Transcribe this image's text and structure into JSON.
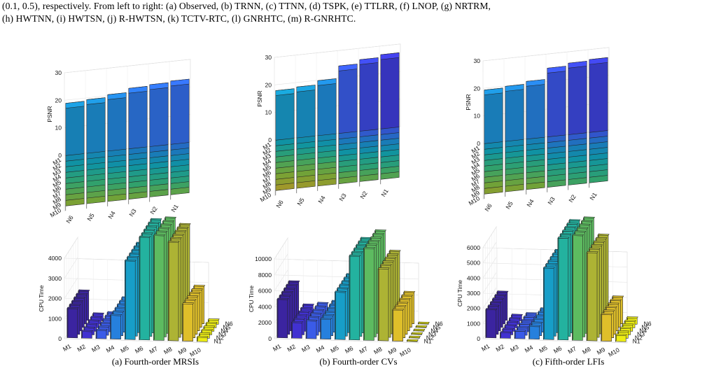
{
  "caption": {
    "line1": "(0.1, 0.5), respectively. From left to right: (a) Observed, (b) TRNN, (c) TTNN, (d) TSPK, (e) TTLRR, (f) LNOP, (g) NRTRM,",
    "line2": "(h) HWTNN, (i) HWTSN, (j) R-HWTSN, (k) TCTV-RTC, (l) GNRHTC, (m) R-GNRHTC."
  },
  "colors": {
    "viridis_low": "#3d26a8",
    "viridis_mid": "#26c0a4",
    "viridis_high": "#f9fb15"
  },
  "chart_data": [
    {
      "type": "bar3d",
      "panel": "a-psnr",
      "ylabel": "PSNR",
      "zlim": [
        0,
        30
      ],
      "zticks": [
        0,
        10,
        20,
        30
      ],
      "methods": [
        "M1",
        "M2",
        "M3",
        "M4",
        "M5",
        "M6",
        "M7",
        "M8",
        "M9",
        "M10"
      ],
      "noise": [
        "N6",
        "N5",
        "N4",
        "N3",
        "N2",
        "N1"
      ],
      "values": [
        [
          19.0,
          19.5,
          20.5,
          22.0,
          22.5,
          23.0
        ],
        [
          17.5,
          18.0,
          19.0,
          20.0,
          21.0,
          21.5
        ],
        [
          16.0,
          16.5,
          17.5,
          18.5,
          19.5,
          20.0
        ],
        [
          15.0,
          15.5,
          16.5,
          17.0,
          17.5,
          18.0
        ],
        [
          13.5,
          14.0,
          15.0,
          15.5,
          16.0,
          16.5
        ],
        [
          12.5,
          13.0,
          13.5,
          14.0,
          14.5,
          15.0
        ],
        [
          11.5,
          12.0,
          12.5,
          13.0,
          13.5,
          14.0
        ],
        [
          10.5,
          11.0,
          11.5,
          12.0,
          12.5,
          13.0
        ],
        [
          9.5,
          10.0,
          10.0,
          10.5,
          11.0,
          11.5
        ],
        [
          8.5,
          9.0,
          9.0,
          9.5,
          10.0,
          10.0
        ]
      ]
    },
    {
      "type": "bar3d",
      "panel": "b-psnr",
      "ylabel": "PSNR",
      "zlim": [
        0,
        30
      ],
      "zticks": [
        0,
        10,
        20,
        30
      ],
      "methods": [
        "M1",
        "M2",
        "M3",
        "M4",
        "M5",
        "M6",
        "M7",
        "M8",
        "M9",
        "M10"
      ],
      "noise": [
        "N6",
        "N5",
        "N4",
        "N3",
        "N2",
        "N1"
      ],
      "values": [
        [
          18.0,
          18.5,
          20.0,
          24.5,
          26.0,
          27.0
        ],
        [
          16.0,
          17.0,
          18.0,
          22.0,
          23.5,
          24.0
        ],
        [
          14.5,
          15.5,
          16.5,
          20.0,
          21.0,
          22.0
        ],
        [
          13.0,
          14.0,
          15.0,
          18.0,
          19.0,
          19.5
        ],
        [
          11.5,
          12.5,
          13.5,
          16.0,
          17.0,
          17.5
        ],
        [
          10.5,
          11.0,
          12.0,
          14.5,
          15.0,
          15.5
        ],
        [
          9.5,
          10.0,
          10.5,
          13.0,
          13.5,
          14.0
        ],
        [
          8.5,
          9.0,
          9.5,
          12.0,
          12.5,
          13.0
        ],
        [
          7.5,
          8.0,
          8.5,
          10.5,
          11.0,
          11.5
        ],
        [
          6.5,
          7.0,
          7.5,
          9.5,
          10.0,
          10.5
        ]
      ]
    },
    {
      "type": "bar3d",
      "panel": "c-psnr",
      "ylabel": "PSNR",
      "zlim": [
        0,
        30
      ],
      "zticks": [
        0,
        10,
        20,
        30
      ],
      "methods": [
        "M1",
        "M2",
        "M3",
        "M4",
        "M5",
        "M6",
        "M7",
        "M8",
        "M9",
        "M10"
      ],
      "noise": [
        "N6",
        "N5",
        "N4",
        "N3",
        "N2",
        "N1"
      ],
      "values": [
        [
          19.5,
          20.0,
          21.0,
          25.0,
          26.0,
          26.5
        ],
        [
          17.5,
          18.0,
          19.0,
          22.5,
          23.5,
          24.0
        ],
        [
          16.0,
          16.5,
          17.5,
          20.5,
          21.0,
          21.5
        ],
        [
          14.5,
          15.0,
          16.0,
          18.5,
          19.0,
          19.5
        ],
        [
          13.0,
          13.5,
          14.5,
          17.0,
          17.5,
          18.0
        ],
        [
          12.0,
          12.5,
          13.0,
          15.5,
          16.0,
          16.5
        ],
        [
          11.0,
          11.5,
          12.0,
          14.0,
          14.5,
          15.0
        ],
        [
          10.0,
          10.5,
          11.0,
          13.0,
          13.5,
          14.0
        ],
        [
          9.0,
          9.5,
          10.0,
          12.0,
          12.5,
          13.0
        ],
        [
          8.0,
          8.5,
          9.0,
          11.0,
          11.5,
          12.0
        ]
      ]
    },
    {
      "type": "bar3d",
      "panel": "a-cpu",
      "ylabel": "CPU Time",
      "zlim": [
        0,
        4000
      ],
      "zticks": [
        0,
        1000,
        2000,
        3000,
        4000
      ],
      "methods": [
        "M1",
        "M2",
        "M3",
        "M4",
        "M5",
        "M6",
        "M7",
        "M8",
        "M9",
        "M10"
      ],
      "noise": [
        "N1",
        "N2",
        "N3",
        "N4",
        "N5",
        "N6"
      ],
      "values": [
        1450,
        330,
        410,
        1170,
        3900,
        5100,
        5200,
        4900,
        1850,
        200
      ]
    },
    {
      "type": "bar3d",
      "panel": "b-cpu",
      "ylabel": "CPU Time",
      "zlim": [
        0,
        10000
      ],
      "zticks": [
        0,
        2000,
        4000,
        6000,
        8000,
        10000
      ],
      "methods": [
        "M1",
        "M2",
        "M3",
        "M4",
        "M5",
        "M6",
        "M7",
        "M8",
        "M9",
        "M10"
      ],
      "noise": [
        "N1",
        "N2",
        "N3",
        "N4",
        "N5",
        "N6"
      ],
      "values": [
        4800,
        1950,
        2200,
        2500,
        5900,
        10500,
        11500,
        9000,
        3900,
        100
      ]
    },
    {
      "type": "bar3d",
      "panel": "c-cpu",
      "ylabel": "CPU Time",
      "zlim": [
        0,
        6000
      ],
      "zticks": [
        0,
        1000,
        2000,
        3000,
        4000,
        5000,
        6000
      ],
      "methods": [
        "M1",
        "M2",
        "M3",
        "M4",
        "M5",
        "M6",
        "M7",
        "M8",
        "M9",
        "M10"
      ],
      "noise": [
        "N1",
        "N2",
        "N3",
        "N4",
        "N5",
        "N6"
      ],
      "values": [
        1850,
        350,
        480,
        820,
        4700,
        6700,
        6900,
        5800,
        1750,
        400
      ]
    }
  ],
  "subcaptions": {
    "a": "(a) Fourth-order MRSIs",
    "b": "(b) Fourth-order CVs",
    "c": "(c) Fifth-order LFIs"
  }
}
